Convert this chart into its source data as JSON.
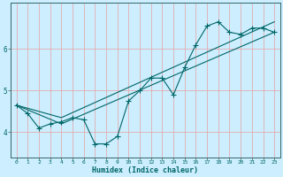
{
  "xlabel": "Humidex (Indice chaleur)",
  "bg_color": "#cceeff",
  "line_color": "#006666",
  "grid_color": "#e8a0a0",
  "xlim": [
    -0.5,
    23.5
  ],
  "ylim": [
    3.4,
    7.1
  ],
  "yticks": [
    4,
    5,
    6
  ],
  "xticks": [
    0,
    1,
    2,
    3,
    4,
    5,
    6,
    7,
    8,
    9,
    10,
    11,
    12,
    13,
    14,
    15,
    16,
    17,
    18,
    19,
    20,
    21,
    22,
    23
  ],
  "line1_x": [
    0,
    1,
    2,
    3,
    4,
    5,
    6,
    7,
    8,
    9,
    10,
    11,
    12,
    13,
    14,
    15,
    16,
    17,
    18,
    19,
    20,
    21,
    22,
    23
  ],
  "line1_y": [
    4.65,
    4.45,
    4.1,
    4.2,
    4.25,
    4.35,
    4.3,
    3.72,
    3.72,
    3.9,
    4.75,
    5.0,
    5.3,
    5.3,
    4.9,
    5.55,
    6.1,
    6.55,
    6.65,
    6.4,
    6.35,
    6.5,
    6.5,
    6.4
  ],
  "line2_x": [
    0,
    4,
    23
  ],
  "line2_y": [
    4.65,
    4.2,
    6.4
  ],
  "line3_x": [
    0,
    4,
    23
  ],
  "line3_y": [
    4.65,
    4.35,
    6.65
  ],
  "linewidth": 0.8,
  "marker_size": 4
}
